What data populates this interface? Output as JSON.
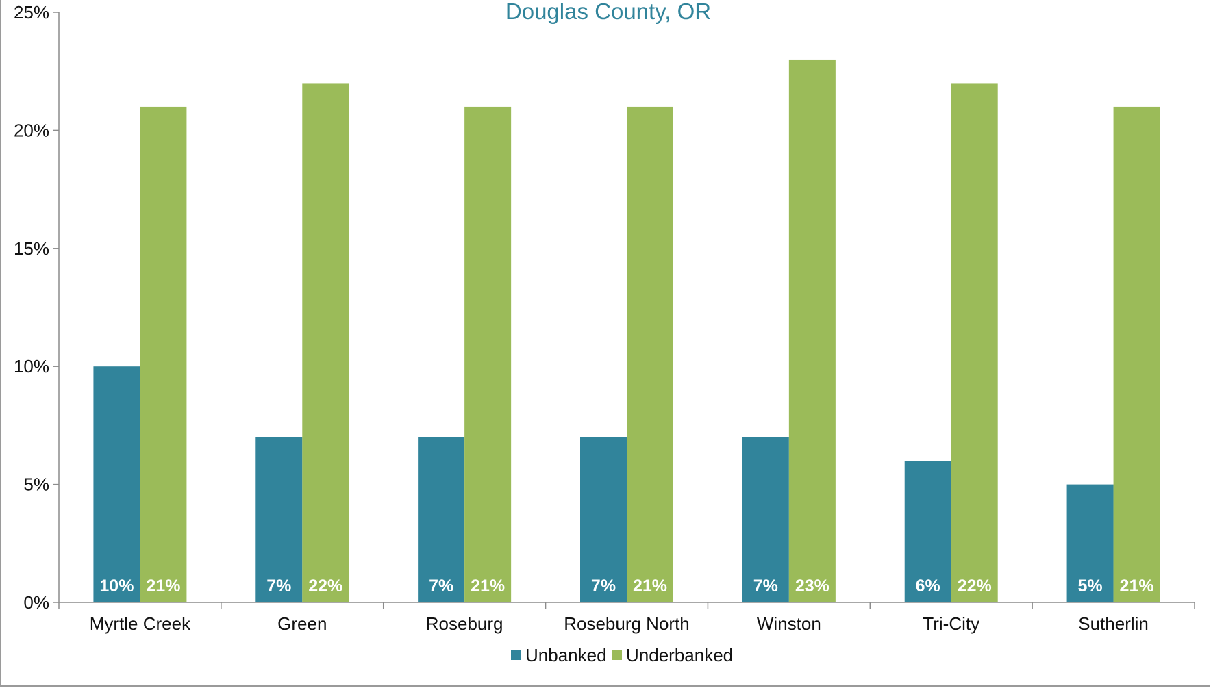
{
  "chart_data": {
    "type": "bar",
    "title": "Douglas County, OR",
    "categories": [
      "Myrtle Creek",
      "Green",
      "Roseburg",
      "Roseburg North",
      "Winston",
      "Tri-City",
      "Sutherlin"
    ],
    "series": [
      {
        "name": "Unbanked",
        "values": [
          10,
          7,
          7,
          7,
          7,
          6,
          5
        ],
        "labels": [
          "10%",
          "7%",
          "7%",
          "7%",
          "7%",
          "6%",
          "5%"
        ],
        "color": "#31849b"
      },
      {
        "name": "Underbanked",
        "values": [
          21,
          22,
          21,
          21,
          23,
          22,
          21
        ],
        "labels": [
          "21%",
          "22%",
          "21%",
          "21%",
          "23%",
          "22%",
          "21%"
        ],
        "color": "#9bbb59"
      }
    ],
    "yticks": [
      "0%",
      "5%",
      "10%",
      "15%",
      "20%",
      "25%"
    ],
    "ylim": [
      0,
      25
    ],
    "xlabel": "",
    "ylabel": "",
    "grid": false,
    "legend": "bottom-center",
    "title_color": "#31849b"
  }
}
